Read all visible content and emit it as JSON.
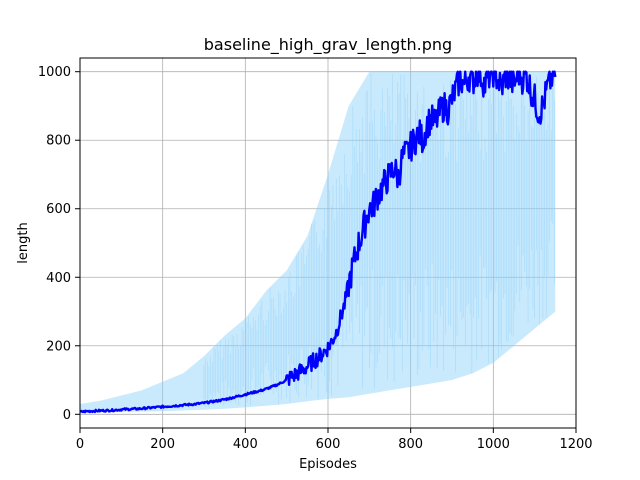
{
  "chart_data": {
    "type": "line",
    "title": "baseline_high_grav_length.png",
    "xlabel": "Episodes",
    "ylabel": "length",
    "xlim": [
      0,
      1200
    ],
    "ylim": [
      -40,
      1040
    ],
    "xticks": [
      0,
      200,
      400,
      600,
      800,
      1000,
      1200
    ],
    "yticks": [
      0,
      200,
      400,
      600,
      800,
      1000
    ],
    "grid": true,
    "colors": {
      "mean": "#0000ff",
      "band": "#87cefa"
    },
    "series": [
      {
        "role": "mean",
        "x": [
          0,
          20,
          40,
          60,
          80,
          100,
          120,
          140,
          160,
          180,
          200,
          220,
          240,
          260,
          280,
          300,
          320,
          340,
          360,
          380,
          400,
          420,
          440,
          460,
          480,
          500,
          520,
          540,
          560,
          580,
          600,
          610,
          620,
          630,
          640,
          650,
          660,
          670,
          680,
          690,
          700,
          710,
          720,
          730,
          740,
          750,
          760,
          770,
          780,
          790,
          800,
          810,
          820,
          830,
          840,
          850,
          860,
          870,
          880,
          890,
          900,
          910,
          920,
          930,
          940,
          950,
          960,
          970,
          980,
          990,
          1000,
          1010,
          1020,
          1030,
          1040,
          1050,
          1060,
          1070,
          1080,
          1090,
          1100,
          1110,
          1120,
          1130,
          1140,
          1150
        ],
        "y": [
          7,
          9,
          10,
          11,
          12,
          14,
          15,
          16,
          18,
          20,
          22,
          24,
          26,
          28,
          30,
          33,
          37,
          41,
          46,
          52,
          58,
          64,
          70,
          78,
          88,
          100,
          115,
          130,
          150,
          170,
          195,
          215,
          240,
          280,
          320,
          380,
          430,
          480,
          520,
          560,
          600,
          610,
          640,
          660,
          680,
          700,
          720,
          690,
          750,
          760,
          780,
          800,
          820,
          800,
          850,
          860,
          850,
          880,
          900,
          890,
          920,
          950,
          980,
          960,
          990,
          970,
          1000,
          990,
          960,
          990,
          1000,
          980,
          950,
          990,
          980,
          960,
          1000,
          980,
          990,
          950,
          920,
          880,
          900,
          950,
          980,
          1000
        ]
      },
      {
        "role": "band-upper",
        "x": [
          0,
          50,
          100,
          150,
          200,
          250,
          300,
          350,
          400,
          450,
          500,
          550,
          600,
          650,
          700,
          750,
          800,
          850,
          900,
          950,
          1000,
          1050,
          1100,
          1150
        ],
        "y": [
          30,
          40,
          55,
          70,
          95,
          120,
          170,
          230,
          280,
          360,
          420,
          520,
          700,
          900,
          1000,
          1000,
          1000,
          1000,
          1000,
          1000,
          1000,
          1000,
          1000,
          1000
        ]
      },
      {
        "role": "band-lower",
        "x": [
          0,
          50,
          100,
          150,
          200,
          250,
          300,
          350,
          400,
          450,
          500,
          550,
          600,
          650,
          700,
          750,
          800,
          850,
          900,
          950,
          1000,
          1050,
          1100,
          1150
        ],
        "y": [
          5,
          6,
          7,
          8,
          9,
          11,
          13,
          16,
          20,
          25,
          30,
          38,
          45,
          50,
          60,
          70,
          80,
          90,
          100,
          120,
          150,
          200,
          250,
          300
        ]
      }
    ]
  }
}
